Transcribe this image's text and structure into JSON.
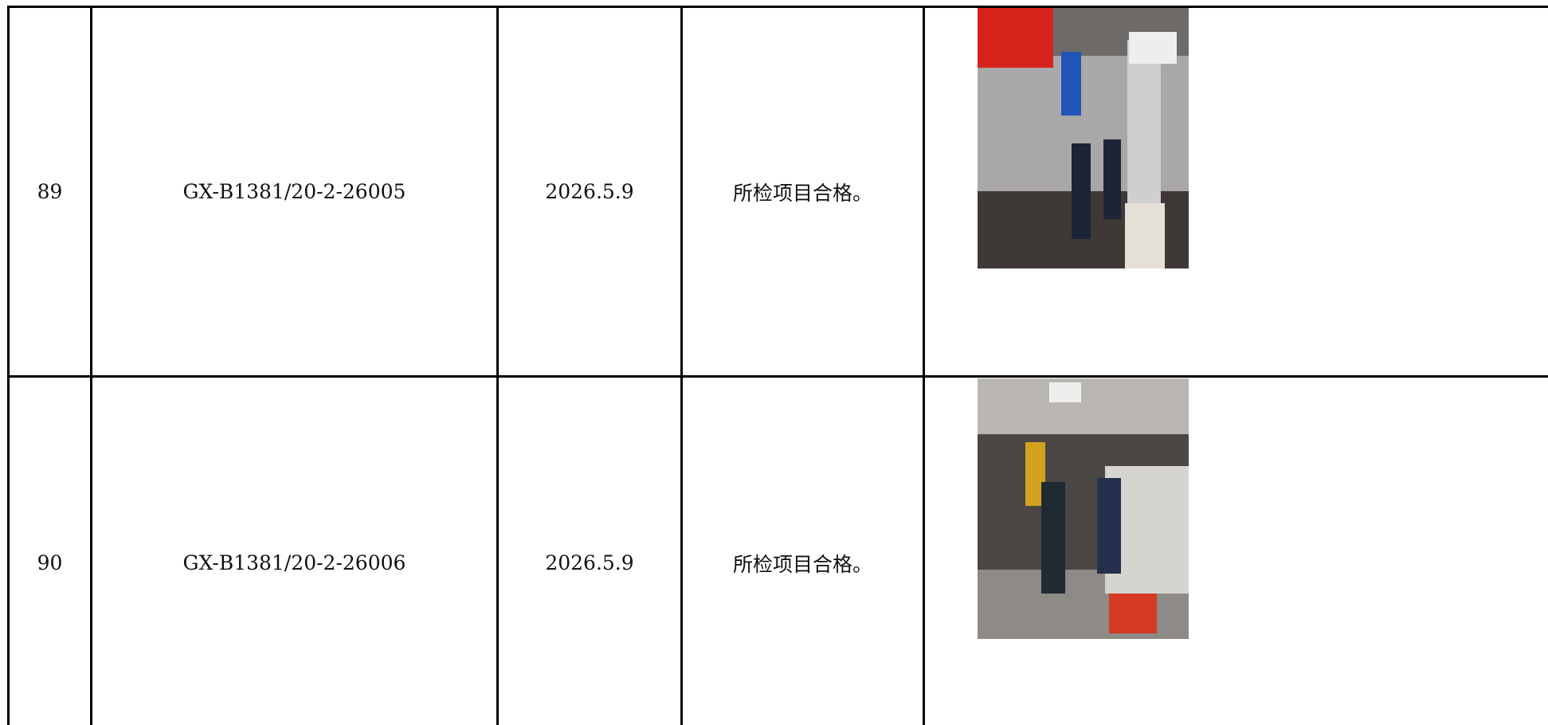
{
  "table": {
    "rows": [
      [
        "89",
        "GX-B1381/20-2-26005",
        "2026.5.9",
        "所检项目合格。"
      ],
      [
        "90",
        "GX-B1381/20-2-26006",
        "2026.5.9",
        "所检项目合格。"
      ]
    ]
  }
}
